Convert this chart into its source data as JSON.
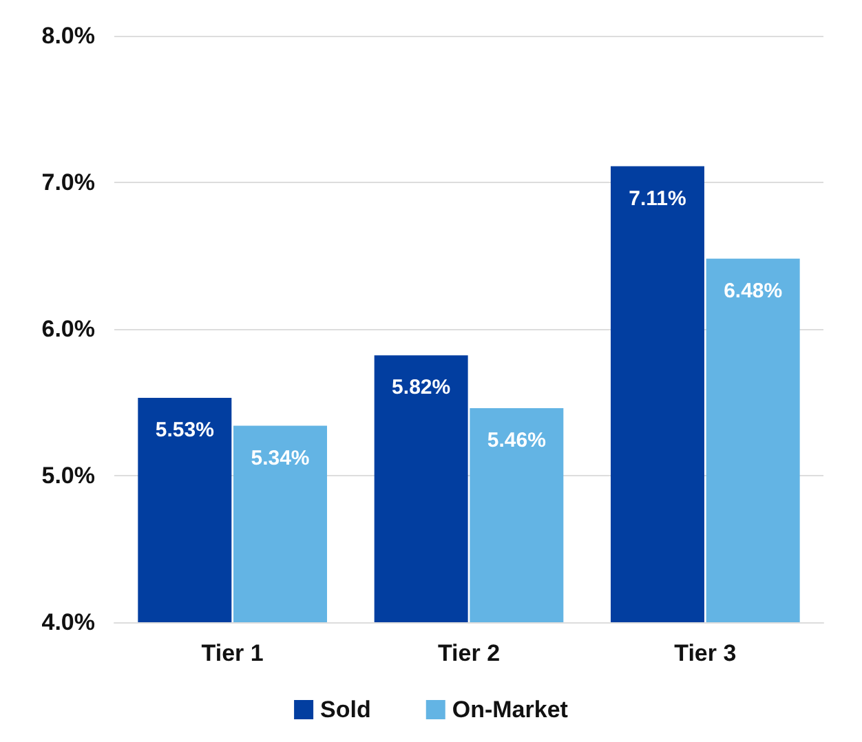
{
  "chart_data": {
    "type": "bar",
    "categories": [
      "Tier 1",
      "Tier 2",
      "Tier 3"
    ],
    "series": [
      {
        "name": "Sold",
        "color": "#023ea0",
        "values": [
          5.53,
          5.82,
          7.11
        ],
        "value_labels": [
          "5.53%",
          "5.82%",
          "7.11%"
        ]
      },
      {
        "name": "On-Market",
        "color": "#63b4e4",
        "values": [
          5.34,
          5.46,
          6.48
        ],
        "value_labels": [
          "5.34%",
          "5.46%",
          "6.48%"
        ]
      }
    ],
    "ylim": [
      4,
      8
    ],
    "yticks": [
      {
        "value": 4,
        "label": "4.0%"
      },
      {
        "value": 5,
        "label": "5.0%"
      },
      {
        "value": 6,
        "label": "6.0%"
      },
      {
        "value": 7,
        "label": "7.0%"
      },
      {
        "value": 8,
        "label": "8.0%"
      }
    ],
    "grid": "y",
    "legend": "bottom"
  }
}
